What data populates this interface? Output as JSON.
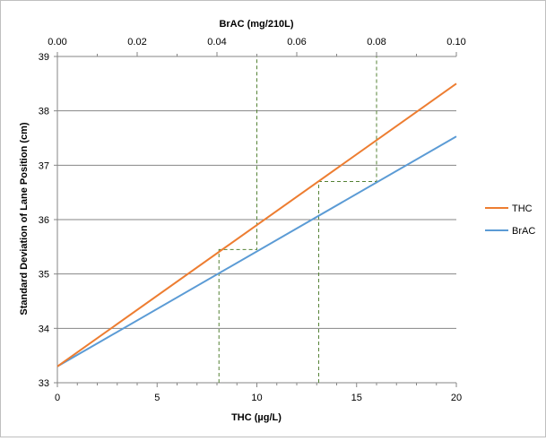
{
  "chart_data": {
    "type": "line",
    "xlabel": "THC (µg/L)",
    "x2label": "BrAC (mg/210L)",
    "ylabel": "Standard Deviation of Lane Position (cm)",
    "xlim": [
      0,
      20
    ],
    "x2lim": [
      0,
      0.1
    ],
    "ylim": [
      33,
      39
    ],
    "xticks": [
      0,
      5,
      10,
      15,
      20
    ],
    "x2ticks": [
      "0.00",
      "0.02",
      "0.04",
      "0.06",
      "0.08",
      "0.10"
    ],
    "yticks": [
      33,
      34,
      35,
      36,
      37,
      38,
      39
    ],
    "grid": "horizontal",
    "legend_position": "right",
    "series": [
      {
        "name": "THC",
        "axis": "bottom",
        "color": "#ed7d31",
        "x": [
          0,
          20
        ],
        "y": [
          33.3,
          38.5
        ]
      },
      {
        "name": "BrAC",
        "axis": "top",
        "color": "#5b9bd5",
        "x": [
          0,
          0.1
        ],
        "y": [
          33.3,
          37.53
        ]
      }
    ],
    "reference_lines": [
      {
        "color": "#548235",
        "style": "dashed",
        "axis": "bottom",
        "x": [
          8.1,
          8.1,
          10,
          10
        ],
        "y": [
          33,
          35.45,
          35.45,
          39
        ]
      },
      {
        "color": "#548235",
        "style": "dashed",
        "axis": "bottom",
        "x": [
          13.1,
          13.1,
          16,
          16
        ],
        "y": [
          33,
          36.7,
          36.7,
          39
        ]
      }
    ]
  }
}
